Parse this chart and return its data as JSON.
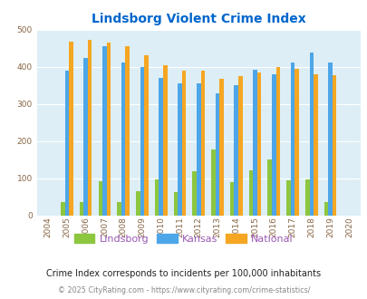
{
  "title": "Lindsborg Violent Crime Index",
  "years": [
    2004,
    2005,
    2006,
    2007,
    2008,
    2009,
    2010,
    2011,
    2012,
    2013,
    2014,
    2015,
    2016,
    2017,
    2018,
    2019,
    2020
  ],
  "lindsborg": [
    0,
    35,
    35,
    93,
    35,
    65,
    97,
    62,
    118,
    177,
    90,
    120,
    151,
    95,
    97,
    35,
    0
  ],
  "kansas": [
    0,
    390,
    424,
    457,
    411,
    400,
    370,
    356,
    355,
    330,
    350,
    392,
    381,
    411,
    440,
    411,
    0
  ],
  "national": [
    0,
    469,
    474,
    467,
    455,
    431,
    405,
    390,
    390,
    368,
    376,
    384,
    399,
    394,
    381,
    379,
    0
  ],
  "bar_color_lindsborg": "#8dc63f",
  "bar_color_kansas": "#4da6e8",
  "bar_color_national": "#f5a623",
  "bg_color": "#ddeef6",
  "title_color": "#0066cc",
  "ylim": [
    0,
    500
  ],
  "yticks": [
    0,
    100,
    200,
    300,
    400,
    500
  ],
  "legend_labels": [
    "Lindsborg",
    "Kansas",
    "National"
  ],
  "note": "Crime Index corresponds to incidents per 100,000 inhabitants",
  "footer": "© 2025 CityRating.com - https://www.cityrating.com/crime-statistics/",
  "note_color": "#222222",
  "footer_color": "#888888",
  "legend_label_color": "#9b59b6"
}
